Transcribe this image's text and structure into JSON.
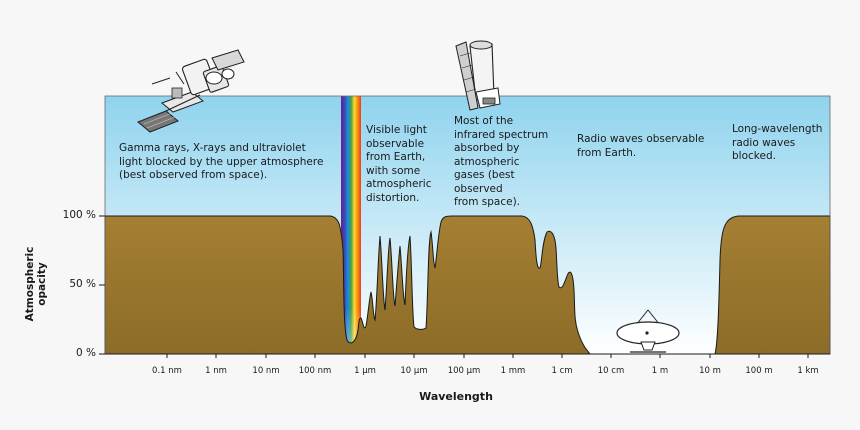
{
  "diagram": {
    "y_axis_label": [
      "Atmospheric",
      "opacity"
    ],
    "x_axis_label": "Wavelength",
    "y_ticks": [
      "100 %",
      "50 %",
      "0 %"
    ],
    "x_ticks": [
      "0.1 nm",
      "1 nm",
      "10 nm",
      "100 nm",
      "1 µm",
      "10 µm",
      "100 µm",
      "1 mm",
      "1 cm",
      "10 cm",
      "1 m",
      "10 m",
      "100 m",
      "1 km"
    ],
    "annotations": {
      "gamma": [
        "Gamma rays, X-rays and ultraviolet",
        "light blocked by the upper atmosphere",
        "(best observed from space)."
      ],
      "visible": [
        "Visible light",
        "observable",
        "from Earth,",
        "with some",
        "atmospheric",
        "distortion."
      ],
      "infrared": [
        "Most of the",
        "infrared spectrum",
        "absorbed by",
        "atmospheric",
        "gases (best",
        "observed",
        "from space)."
      ],
      "radio": [
        "Radio waves observable",
        "from Earth."
      ],
      "long_wave": [
        "Long-wavelength",
        "radio waves",
        "blocked."
      ]
    },
    "colors": {
      "sky_top": "#8fd3ee",
      "sky_bottom": "#ffffff",
      "opacity_fill_top": "#a57f33",
      "opacity_fill_bottom": "#8c6c28",
      "outline": "#1a1a1a"
    },
    "icons": [
      "satellite-icon",
      "space-telescope-icon",
      "radio-dish-icon",
      "visible-spectrum-band"
    ]
  }
}
